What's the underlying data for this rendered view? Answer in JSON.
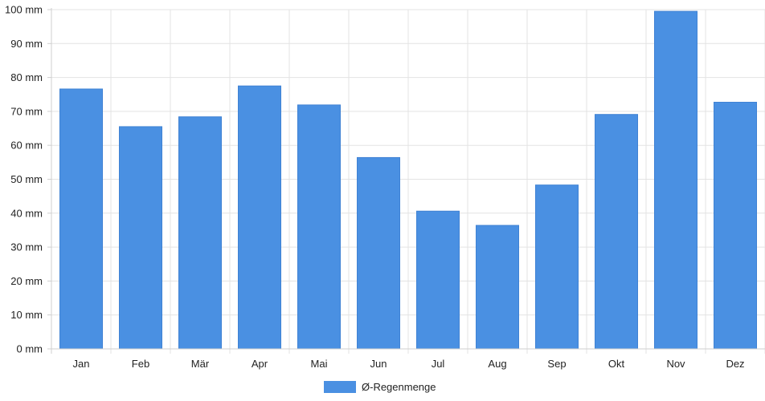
{
  "chart_data": {
    "type": "bar",
    "categories": [
      "Jan",
      "Feb",
      "Mär",
      "Apr",
      "Mai",
      "Jun",
      "Jul",
      "Aug",
      "Sep",
      "Okt",
      "Nov",
      "Dez"
    ],
    "series": [
      {
        "name": "Ø-Regenmenge",
        "values": [
          76.6,
          65.5,
          68.4,
          77.5,
          71.9,
          56.4,
          40.6,
          36.4,
          48.3,
          69.1,
          99.5,
          72.7
        ],
        "color": "#4a90e2"
      }
    ],
    "y_ticks": [
      "0 mm",
      "10 mm",
      "20 mm",
      "30 mm",
      "40 mm",
      "50 mm",
      "60 mm",
      "70 mm",
      "80 mm",
      "90 mm",
      "100 mm"
    ],
    "ylim": [
      0,
      100
    ],
    "grid": true,
    "legend_position": "bottom"
  }
}
